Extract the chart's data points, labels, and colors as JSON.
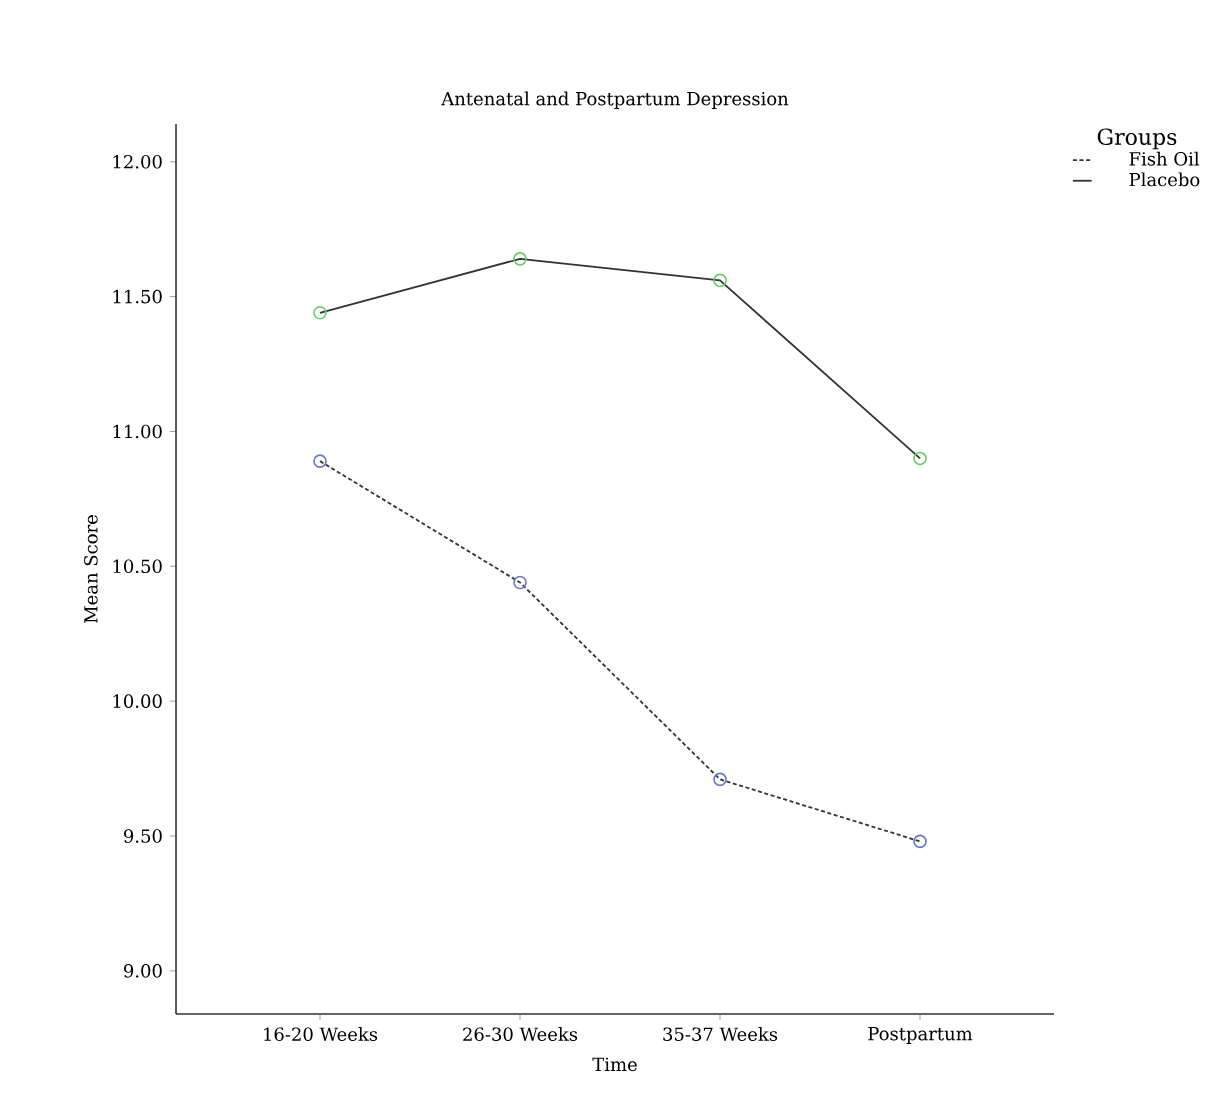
{
  "chart_data": {
    "type": "line",
    "title": "Antenatal and Postpartum Depression",
    "xlabel": "Time",
    "ylabel": "Mean Score",
    "legend_title": "Groups",
    "categories": [
      "16-20 Weeks",
      "26-30 Weeks",
      "35-37 Weeks",
      "Postpartum"
    ],
    "series": [
      {
        "name": "Fish Oil",
        "color": "#333333",
        "colors": [
          "#6677cc",
          "#6677cc",
          "#6677cc",
          "#6677cc"
        ],
        "line_style": "dashed",
        "values": [
          10.89,
          10.44,
          9.71,
          9.48
        ]
      },
      {
        "name": "Placebo",
        "color": "#333333",
        "colors": [
          "#66cc66",
          "#66cc66",
          "#66cc66",
          "#66cc66"
        ],
        "line_style": "solid",
        "values": [
          11.44,
          11.64,
          11.56,
          10.9
        ]
      }
    ],
    "ylim": [
      8.84,
      12.14
    ],
    "yticks": [
      {
        "value": 9,
        "label": "9.00"
      },
      {
        "value": 9.5,
        "label": "9.50"
      },
      {
        "value": 10,
        "label": "10.00"
      },
      {
        "value": 10.5,
        "label": "10.50"
      },
      {
        "value": 11,
        "label": "11.00"
      },
      {
        "value": 11.5,
        "label": "11.50"
      },
      {
        "value": 12,
        "label": "12.00"
      }
    ],
    "marker": "circle",
    "grid": false,
    "legend": "top right"
  }
}
